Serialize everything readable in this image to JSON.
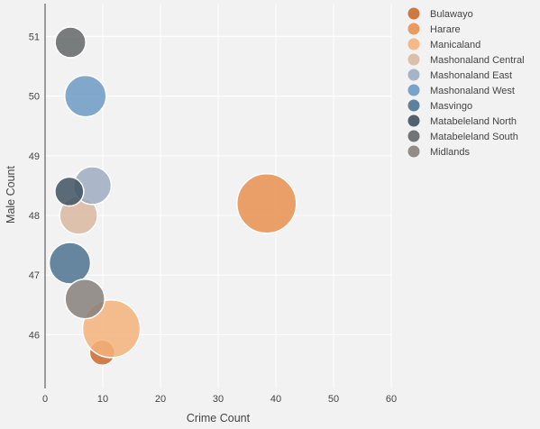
{
  "chart_data": {
    "type": "scatter",
    "title": "",
    "xlabel": "Crime Count",
    "ylabel": "Male Count",
    "xlim": [
      0,
      60
    ],
    "ylim": [
      45.1,
      51.55
    ],
    "x_ticks": [
      0,
      10,
      20,
      30,
      40,
      50,
      60
    ],
    "y_ticks": [
      46,
      47,
      48,
      49,
      50,
      51
    ],
    "grid": true,
    "legend_position": "right",
    "series": [
      {
        "name": "Bulawayo",
        "color": "#cc6a2f",
        "points": [
          {
            "x": 9.9,
            "y": 45.7,
            "size": 14
          }
        ]
      },
      {
        "name": "Harare",
        "color": "#e8914f",
        "points": [
          {
            "x": 38.4,
            "y": 48.2,
            "size": 33
          }
        ]
      },
      {
        "name": "Manicaland",
        "color": "#f4b27a",
        "points": [
          {
            "x": 11.5,
            "y": 46.1,
            "size": 32
          }
        ]
      },
      {
        "name": "Mashonaland Central",
        "color": "#d9b9a0",
        "points": [
          {
            "x": 5.8,
            "y": 48.0,
            "size": 21
          }
        ]
      },
      {
        "name": "Mashonaland East",
        "color": "#9fadc1",
        "points": [
          {
            "x": 8.2,
            "y": 48.5,
            "size": 21
          }
        ]
      },
      {
        "name": "Mashonaland West",
        "color": "#6d9ac4",
        "points": [
          {
            "x": 7.0,
            "y": 50.0,
            "size": 23
          }
        ]
      },
      {
        "name": "Masvingo",
        "color": "#4e7391",
        "points": [
          {
            "x": 4.3,
            "y": 47.2,
            "size": 23
          }
        ]
      },
      {
        "name": "Matabeleland North",
        "color": "#3f5261",
        "points": [
          {
            "x": 4.2,
            "y": 48.4,
            "size": 16
          }
        ]
      },
      {
        "name": "Matabeleland South",
        "color": "#646769",
        "points": [
          {
            "x": 4.4,
            "y": 50.9,
            "size": 17
          }
        ]
      },
      {
        "name": "Midlands",
        "color": "#87807c",
        "points": [
          {
            "x": 6.9,
            "y": 46.6,
            "size": 22
          }
        ]
      }
    ]
  }
}
